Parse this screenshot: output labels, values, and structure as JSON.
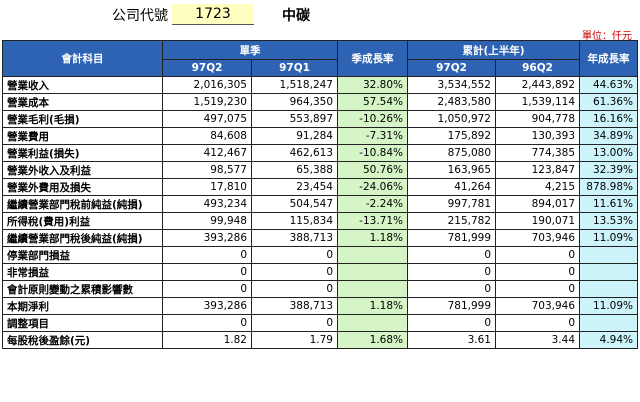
{
  "header": {
    "code_label": "公司代號",
    "code_value": "1723",
    "company": "中碳",
    "unit": "單位：仟元"
  },
  "columns": {
    "item": "會計科目",
    "quarter_group": "單季",
    "qoq_growth": "季成長率",
    "half_group": "累計(上半年)",
    "yoy_growth": "年成長率",
    "q_cur": "97Q2",
    "q_prev": "97Q1",
    "h_cur": "97Q2",
    "h_prev": "96Q2"
  },
  "rows": [
    {
      "item": "營業收入",
      "q_cur": "2,016,305",
      "q_prev": "1,518,247",
      "qoq": "32.80%",
      "h_cur": "3,534,552",
      "h_prev": "2,443,892",
      "yoy": "44.63%"
    },
    {
      "item": "營業成本",
      "q_cur": "1,519,230",
      "q_prev": "964,350",
      "qoq": "57.54%",
      "h_cur": "2,483,580",
      "h_prev": "1,539,114",
      "yoy": "61.36%"
    },
    {
      "item": "營業毛利(毛損)",
      "q_cur": "497,075",
      "q_prev": "553,897",
      "qoq": "-10.26%",
      "h_cur": "1,050,972",
      "h_prev": "904,778",
      "yoy": "16.16%"
    },
    {
      "item": "營業費用",
      "q_cur": "84,608",
      "q_prev": "91,284",
      "qoq": "-7.31%",
      "h_cur": "175,892",
      "h_prev": "130,393",
      "yoy": "34.89%"
    },
    {
      "item": "營業利益(損失)",
      "q_cur": "412,467",
      "q_prev": "462,613",
      "qoq": "-10.84%",
      "h_cur": "875,080",
      "h_prev": "774,385",
      "yoy": "13.00%"
    },
    {
      "item": "營業外收入及利益",
      "q_cur": "98,577",
      "q_prev": "65,388",
      "qoq": "50.76%",
      "h_cur": "163,965",
      "h_prev": "123,847",
      "yoy": "32.39%"
    },
    {
      "item": "營業外費用及損失",
      "q_cur": "17,810",
      "q_prev": "23,454",
      "qoq": "-24.06%",
      "h_cur": "41,264",
      "h_prev": "4,215",
      "yoy": "878.98%"
    },
    {
      "item": "繼續營業部門稅前純益(純損)",
      "q_cur": "493,234",
      "q_prev": "504,547",
      "qoq": "-2.24%",
      "h_cur": "997,781",
      "h_prev": "894,017",
      "yoy": "11.61%"
    },
    {
      "item": "所得稅(費用)利益",
      "q_cur": "99,948",
      "q_prev": "115,834",
      "qoq": "-13.71%",
      "h_cur": "215,782",
      "h_prev": "190,071",
      "yoy": "13.53%"
    },
    {
      "item": "繼續營業部門稅後純益(純損)",
      "q_cur": "393,286",
      "q_prev": "388,713",
      "qoq": "1.18%",
      "h_cur": "781,999",
      "h_prev": "703,946",
      "yoy": "11.09%"
    },
    {
      "item": "停業部門損益",
      "q_cur": "0",
      "q_prev": "0",
      "qoq": "",
      "h_cur": "0",
      "h_prev": "0",
      "yoy": ""
    },
    {
      "item": "非常損益",
      "q_cur": "0",
      "q_prev": "0",
      "qoq": "",
      "h_cur": "0",
      "h_prev": "0",
      "yoy": ""
    },
    {
      "item": "會計原則變動之累積影響數",
      "q_cur": "0",
      "q_prev": "0",
      "qoq": "",
      "h_cur": "0",
      "h_prev": "0",
      "yoy": ""
    },
    {
      "item": "本期淨利",
      "q_cur": "393,286",
      "q_prev": "388,713",
      "qoq": "1.18%",
      "h_cur": "781,999",
      "h_prev": "703,946",
      "yoy": "11.09%"
    },
    {
      "item": "調整項目",
      "q_cur": "0",
      "q_prev": "0",
      "qoq": "",
      "h_cur": "0",
      "h_prev": "0",
      "yoy": ""
    },
    {
      "item": "每股稅後盈餘(元)",
      "q_cur": "1.82",
      "q_prev": "1.79",
      "qoq": "1.68%",
      "h_cur": "3.61",
      "h_prev": "3.44",
      "yoy": "4.94%"
    }
  ]
}
